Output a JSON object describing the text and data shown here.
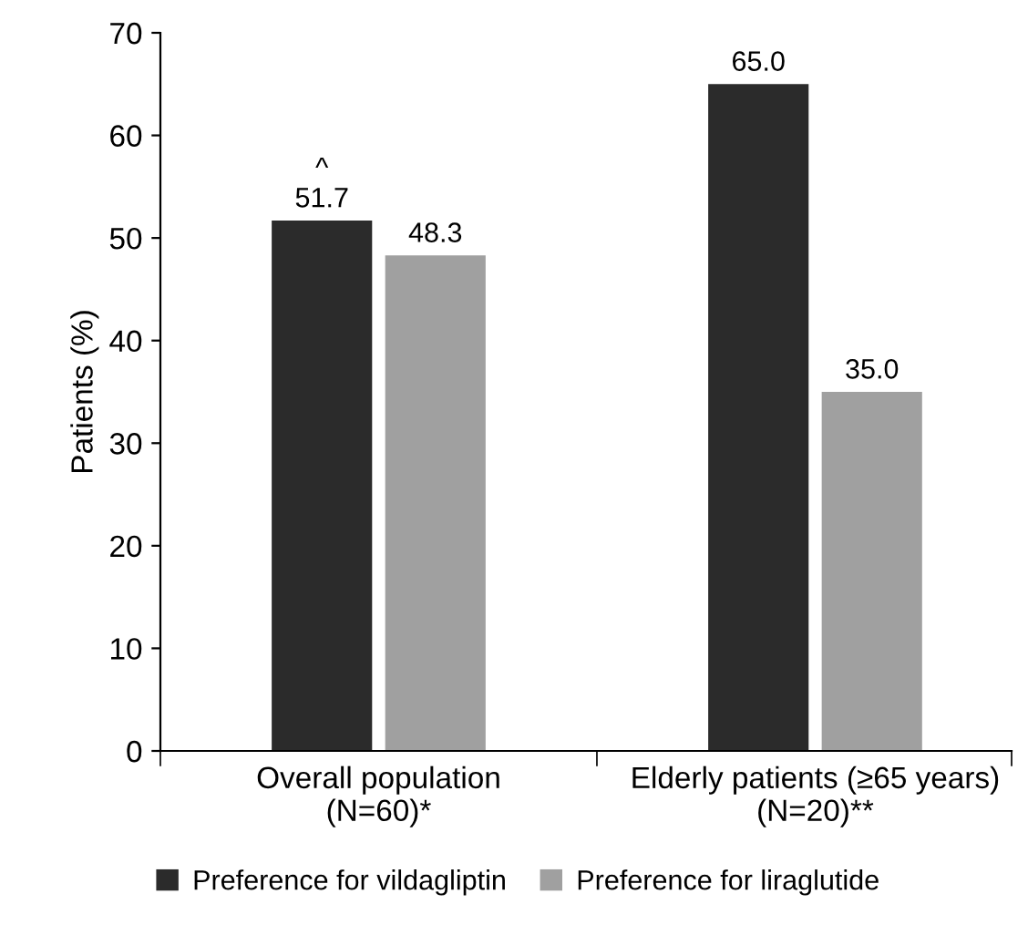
{
  "chart_data": {
    "type": "bar",
    "ylabel": "Patients (%)",
    "categories": [
      "Overall population\n(N=60)*",
      "Elderly patients (≥65 years)\n(N=20)**"
    ],
    "series": [
      {
        "name": "Preference for vildagliptin",
        "color": "#2b2b2b",
        "values": [
          51.7,
          65.0
        ],
        "value_labels": [
          "51.7",
          "65.0"
        ]
      },
      {
        "name": "Preference for liraglutide",
        "color": "#a0a0a0",
        "values": [
          48.3,
          35.0
        ],
        "value_labels": [
          "48.3",
          "35.0"
        ]
      }
    ],
    "annotations": [
      {
        "text": "^",
        "x": "Overall population\n(N=60)*",
        "y": 51.7
      }
    ],
    "ylim": [
      0,
      70
    ],
    "yticks": [
      0,
      10,
      20,
      30,
      40,
      50,
      60,
      70
    ],
    "grid": false,
    "legend": "bottom"
  }
}
